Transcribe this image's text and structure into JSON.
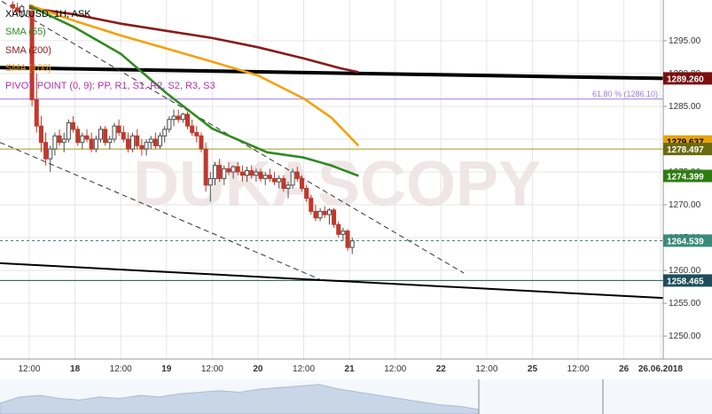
{
  "chart_data": {
    "type": "line",
    "title": "XAU/USD, 1H, ASK",
    "instrument": "XAU/USD",
    "timeframe": "1H",
    "price_side": "ASK",
    "legend": [
      {
        "label": "SMA (55)",
        "color": "#2e8b1e"
      },
      {
        "label": "SMA (200)",
        "color": "#8b1a1a"
      },
      {
        "label": "SMA (100)",
        "color": "#f5a00a"
      },
      {
        "label": "PIVOT POINT (0, 9): PP, R1, S1, R2, S2, R3, S3",
        "color": "#b030b0"
      }
    ],
    "y_ticks": [
      1250.0,
      1255.0,
      1260.0,
      1265.0,
      1270.0,
      1275.0,
      1280.0,
      1285.0,
      1290.0,
      1295.0
    ],
    "y_tick_labels": [
      "1250.00",
      "1255.00",
      "1260.00",
      "1265.00",
      "1270.00",
      "1275.00",
      "1280.00",
      "1285.00",
      "1290.00",
      "1295.00"
    ],
    "ylim": [
      1246.5,
      1301.2
    ],
    "x_ticks": [
      {
        "t": 0.0,
        "label": "12:00"
      },
      {
        "t": 0.5,
        "label": "18"
      },
      {
        "t": 1.0,
        "label": "12:00"
      },
      {
        "t": 1.5,
        "label": "19"
      },
      {
        "t": 2.0,
        "label": "12:00"
      },
      {
        "t": 2.5,
        "label": "20"
      },
      {
        "t": 3.0,
        "label": "12:00"
      },
      {
        "t": 3.5,
        "label": "21"
      },
      {
        "t": 4.0,
        "label": "12:00"
      },
      {
        "t": 4.5,
        "label": "22"
      },
      {
        "t": 5.0,
        "label": "12:00"
      },
      {
        "t": 5.5,
        "label": "25"
      },
      {
        "t": 6.0,
        "label": "12:00"
      },
      {
        "t": 6.5,
        "label": "26"
      },
      {
        "t": 6.9,
        "label": "26.06.2018"
      }
    ],
    "xlim": [
      -0.32,
      6.93
    ],
    "price_badges": [
      {
        "value": 1289.26,
        "label": "1289.260",
        "color": "#7a1010",
        "text_color": "#ffffff"
      },
      {
        "value": 1279.637,
        "label": "1279.637",
        "color": "#e8a20a",
        "text_color": "#000000"
      },
      {
        "value": 1278.497,
        "label": "1278.497",
        "color": "#6b6b10",
        "text_color": "#ffffff"
      },
      {
        "value": 1274.399,
        "label": "1274.399",
        "color": "#2e7d12",
        "text_color": "#ffffff"
      },
      {
        "value": 1264.539,
        "label": "1264.539",
        "color": "#3a8a7a",
        "text_color": "#ffffff"
      },
      {
        "value": 1258.465,
        "label": "1258.465",
        "color": "#1e4e5a",
        "text_color": "#ffffff"
      }
    ],
    "horizontal_lines": [
      {
        "name": "fib-61.8",
        "value": 1286.1,
        "color": "#9a7ae0",
        "label": "61.80 % (1286.10)"
      },
      {
        "name": "pivot-level",
        "value": 1278.497,
        "color": "#a09a20",
        "label": ""
      },
      {
        "name": "current-price",
        "value": 1264.539,
        "color": "#3a8a7a",
        "dashed": true,
        "label": ""
      },
      {
        "name": "support-level",
        "value": 1258.465,
        "color": "#1e4e5a",
        "label": ""
      }
    ],
    "trendlines": [
      {
        "name": "resistance-thick",
        "x": [
          -0.32,
          6.93
        ],
        "y": [
          1290.9,
          1289.26
        ],
        "width": 4,
        "color": "#000000",
        "dashed": false
      },
      {
        "name": "support-solid",
        "x": [
          -0.32,
          6.93
        ],
        "y": [
          1261.1,
          1255.8
        ],
        "width": 2,
        "color": "#000000",
        "dashed": false
      },
      {
        "name": "channel-upper",
        "x": [
          -0.3,
          4.75
        ],
        "y": [
          1301.0,
          1259.6
        ],
        "width": 1,
        "color": "#333333",
        "dashed": true
      },
      {
        "name": "channel-lower",
        "x": [
          -0.32,
          3.2
        ],
        "y": [
          1279.5,
          1258.5
        ],
        "width": 1,
        "color": "#333333",
        "dashed": true
      }
    ],
    "series": [
      {
        "name": "SMA (200)",
        "color": "#8b1a1a",
        "x": [
          0.0,
          0.5,
          1.0,
          1.5,
          2.0,
          2.5,
          3.0,
          3.4,
          3.6
        ],
        "y": [
          1300.0,
          1299.0,
          1297.6,
          1296.5,
          1295.4,
          1294.0,
          1292.3,
          1290.8,
          1290.2
        ]
      },
      {
        "name": "SMA (100)",
        "color": "#f5a00a",
        "x": [
          0.0,
          0.5,
          1.0,
          1.5,
          2.0,
          2.5,
          3.0,
          3.3,
          3.6
        ],
        "y": [
          1300.4,
          1298.0,
          1295.8,
          1293.8,
          1291.8,
          1289.7,
          1286.2,
          1283.3,
          1279.0
        ]
      },
      {
        "name": "SMA (55)",
        "color": "#2e8b1e",
        "x": [
          0.0,
          0.5,
          1.0,
          1.5,
          2.0,
          2.3,
          2.6,
          3.0,
          3.3,
          3.6
        ],
        "y": [
          1300.3,
          1297.0,
          1293.0,
          1287.0,
          1281.6,
          1279.8,
          1278.0,
          1277.2,
          1276.0,
          1274.4
        ]
      }
    ],
    "candles": [
      [
        -0.18,
        1300.5,
        1301.0,
        1299.0,
        1300.0
      ],
      [
        -0.13,
        1300.0,
        1300.8,
        1299.0,
        1299.5
      ],
      [
        -0.08,
        1299.5,
        1300.5,
        1298.5,
        1300.2
      ],
      [
        0.03,
        1299.5,
        1300.5,
        1285.0,
        1286.0
      ],
      [
        0.08,
        1286.0,
        1290.0,
        1281.0,
        1282.0
      ],
      [
        0.13,
        1282.0,
        1283.5,
        1278.0,
        1279.5
      ],
      [
        0.18,
        1279.5,
        1281.0,
        1276.0,
        1277.0
      ],
      [
        0.23,
        1277.0,
        1279.0,
        1275.0,
        1278.5
      ],
      [
        0.28,
        1278.5,
        1281.0,
        1277.5,
        1280.5
      ],
      [
        0.33,
        1280.5,
        1281.5,
        1279.0,
        1279.5
      ],
      [
        0.38,
        1279.5,
        1281.0,
        1278.0,
        1280.0
      ],
      [
        0.43,
        1280.0,
        1283.0,
        1279.5,
        1282.5
      ],
      [
        0.48,
        1282.5,
        1283.5,
        1281.0,
        1281.5
      ],
      [
        0.53,
        1281.5,
        1282.0,
        1279.0,
        1279.5
      ],
      [
        0.58,
        1279.5,
        1281.0,
        1278.5,
        1280.5
      ],
      [
        0.63,
        1280.5,
        1281.5,
        1279.5,
        1280.0
      ],
      [
        0.68,
        1280.0,
        1281.0,
        1278.0,
        1278.5
      ],
      [
        0.73,
        1278.5,
        1280.5,
        1278.0,
        1280.0
      ],
      [
        0.78,
        1280.0,
        1282.0,
        1279.5,
        1281.5
      ],
      [
        0.83,
        1281.5,
        1282.0,
        1279.0,
        1279.5
      ],
      [
        0.88,
        1279.5,
        1280.5,
        1278.5,
        1280.0
      ],
      [
        0.93,
        1280.0,
        1282.5,
        1279.5,
        1282.0
      ],
      [
        0.98,
        1282.0,
        1283.0,
        1280.5,
        1281.0
      ],
      [
        1.03,
        1281.0,
        1282.0,
        1279.5,
        1280.0
      ],
      [
        1.08,
        1280.0,
        1281.0,
        1278.0,
        1278.5
      ],
      [
        1.13,
        1278.5,
        1281.0,
        1278.0,
        1280.5
      ],
      [
        1.18,
        1280.5,
        1281.5,
        1278.5,
        1279.0
      ],
      [
        1.23,
        1279.0,
        1280.0,
        1277.5,
        1278.5
      ],
      [
        1.28,
        1278.5,
        1280.0,
        1277.5,
        1279.5
      ],
      [
        1.33,
        1279.5,
        1280.5,
        1278.5,
        1280.0
      ],
      [
        1.38,
        1280.0,
        1281.0,
        1278.5,
        1279.0
      ],
      [
        1.43,
        1279.0,
        1281.0,
        1278.5,
        1280.5
      ],
      [
        1.48,
        1280.5,
        1282.0,
        1279.5,
        1281.5
      ],
      [
        1.53,
        1281.5,
        1283.5,
        1281.0,
        1283.0
      ],
      [
        1.58,
        1283.0,
        1284.5,
        1282.0,
        1283.5
      ],
      [
        1.63,
        1283.5,
        1284.5,
        1282.5,
        1283.0
      ],
      [
        1.68,
        1283.0,
        1284.0,
        1282.5,
        1283.8
      ],
      [
        1.73,
        1283.8,
        1284.2,
        1281.5,
        1282.0
      ],
      [
        1.78,
        1282.0,
        1283.0,
        1280.5,
        1281.0
      ],
      [
        1.83,
        1281.0,
        1282.0,
        1279.5,
        1280.5
      ],
      [
        1.88,
        1280.5,
        1281.0,
        1278.0,
        1278.5
      ],
      [
        1.93,
        1278.5,
        1279.5,
        1272.0,
        1273.0
      ],
      [
        1.98,
        1273.0,
        1275.0,
        1270.5,
        1274.0
      ],
      [
        2.03,
        1274.0,
        1276.5,
        1273.0,
        1276.0
      ],
      [
        2.08,
        1276.0,
        1277.0,
        1273.5,
        1274.0
      ],
      [
        2.13,
        1274.0,
        1276.0,
        1273.0,
        1275.5
      ],
      [
        2.18,
        1275.5,
        1276.5,
        1274.5,
        1275.0
      ],
      [
        2.23,
        1275.0,
        1276.0,
        1274.0,
        1275.8
      ],
      [
        2.28,
        1275.8,
        1276.5,
        1274.5,
        1275.0
      ],
      [
        2.33,
        1275.0,
        1276.0,
        1273.5,
        1274.5
      ],
      [
        2.38,
        1274.5,
        1275.8,
        1273.5,
        1275.2
      ],
      [
        2.43,
        1275.2,
        1276.0,
        1274.0,
        1274.5
      ],
      [
        2.48,
        1274.5,
        1275.5,
        1273.5,
        1275.0
      ],
      [
        2.53,
        1275.0,
        1275.5,
        1273.5,
        1274.0
      ],
      [
        2.58,
        1274.0,
        1275.0,
        1273.0,
        1274.5
      ],
      [
        2.63,
        1274.5,
        1275.5,
        1273.5,
        1274.0
      ],
      [
        2.68,
        1274.0,
        1275.0,
        1273.0,
        1273.5
      ],
      [
        2.73,
        1273.5,
        1274.5,
        1272.5,
        1274.0
      ],
      [
        2.78,
        1274.0,
        1274.5,
        1272.0,
        1272.5
      ],
      [
        2.83,
        1272.5,
        1273.5,
        1271.0,
        1273.0
      ],
      [
        2.88,
        1273.0,
        1275.5,
        1272.5,
        1275.0
      ],
      [
        2.93,
        1275.0,
        1275.8,
        1273.5,
        1274.0
      ],
      [
        2.98,
        1274.0,
        1274.5,
        1272.0,
        1272.5
      ],
      [
        3.03,
        1272.5,
        1273.0,
        1270.5,
        1271.0
      ],
      [
        3.08,
        1271.0,
        1271.5,
        1268.5,
        1269.0
      ],
      [
        3.13,
        1269.0,
        1270.0,
        1267.5,
        1268.0
      ],
      [
        3.18,
        1268.0,
        1269.5,
        1267.5,
        1269.0
      ],
      [
        3.23,
        1269.0,
        1269.8,
        1268.0,
        1268.5
      ],
      [
        3.28,
        1268.5,
        1269.5,
        1267.0,
        1269.2
      ],
      [
        3.33,
        1269.2,
        1269.5,
        1266.5,
        1267.0
      ],
      [
        3.38,
        1267.0,
        1267.5,
        1265.0,
        1265.5
      ],
      [
        3.43,
        1265.5,
        1266.5,
        1264.5,
        1266.0
      ],
      [
        3.48,
        1266.0,
        1266.3,
        1263.0,
        1263.5
      ],
      [
        3.53,
        1263.5,
        1265.0,
        1262.5,
        1264.5
      ]
    ],
    "volume_profile": [
      0.35,
      0.55,
      0.6,
      0.5,
      0.45,
      0.55,
      0.5,
      0.6,
      0.55,
      0.65,
      0.7,
      0.75,
      0.7,
      0.8,
      0.85,
      0.9,
      0.95,
      0.8,
      0.7,
      0.6,
      0.5,
      0.4,
      0.3,
      0.25,
      0.15
    ]
  },
  "colors": {
    "axis": "#9a9a9a",
    "grid": "#e6e6e6",
    "candle_up": "#4a4a4a",
    "candle_down": "#c0392b",
    "watermark": "#f0e6e6"
  }
}
